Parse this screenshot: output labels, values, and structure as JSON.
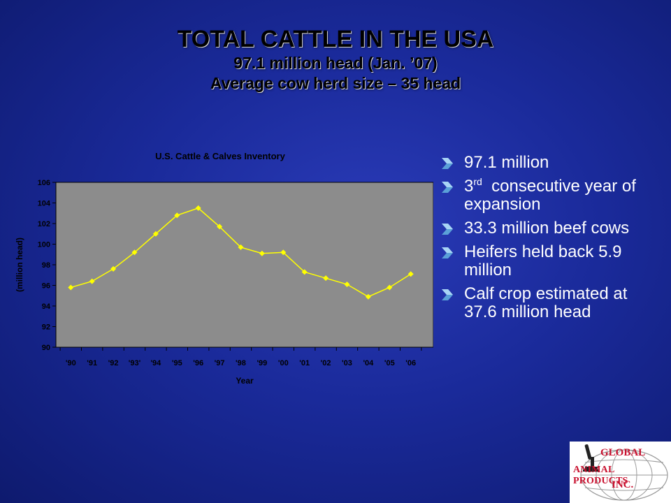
{
  "slide": {
    "title_line1": "TOTAL CATTLE IN THE USA",
    "title_line2": "97.1 million head (Jan. ’07)",
    "title_line3": "Average cow herd size – 35 head"
  },
  "bullets": [
    {
      "text": "97.1 million"
    },
    {
      "pre": "3",
      "sup": "rd",
      "text": "  consecutive year of expansion"
    },
    {
      "text": "33.3 million beef cows"
    },
    {
      "text": "Heifers held back 5.9 million"
    },
    {
      "text": "Calf crop estimated at 37.6 million head"
    }
  ],
  "logo": {
    "line1": "GLOBAL",
    "line2": "ANIMAL PRODUCTS",
    "line3": "INC."
  },
  "colors": {
    "plot_bg": "#8c8c8c",
    "line": "#ffff00",
    "bullet_arrow": "#5aa0d8",
    "logo_red": "#c8102e"
  },
  "chart_data": {
    "type": "line",
    "title": "U.S. Cattle & Calves Inventory",
    "xlabel": "Year",
    "ylabel": "(million head)",
    "categories": [
      "'90",
      "'91",
      "'92",
      "'93'",
      "'94",
      "'95",
      "'96",
      "'97",
      "'98",
      "'99",
      "'00",
      "'01",
      "'02",
      "'03",
      "'04",
      "'05",
      "'06"
    ],
    "series": [
      {
        "values": [
          95.8,
          96.4,
          97.6,
          99.2,
          101.0,
          102.8,
          103.5,
          101.7,
          99.7,
          99.1,
          99.2,
          97.3,
          96.7,
          96.1,
          94.9,
          95.8,
          97.1
        ]
      }
    ],
    "ylim": [
      90,
      106
    ],
    "yticks": [
      90,
      92,
      94,
      96,
      98,
      100,
      102,
      104,
      106
    ],
    "grid": false,
    "legend": "none"
  }
}
